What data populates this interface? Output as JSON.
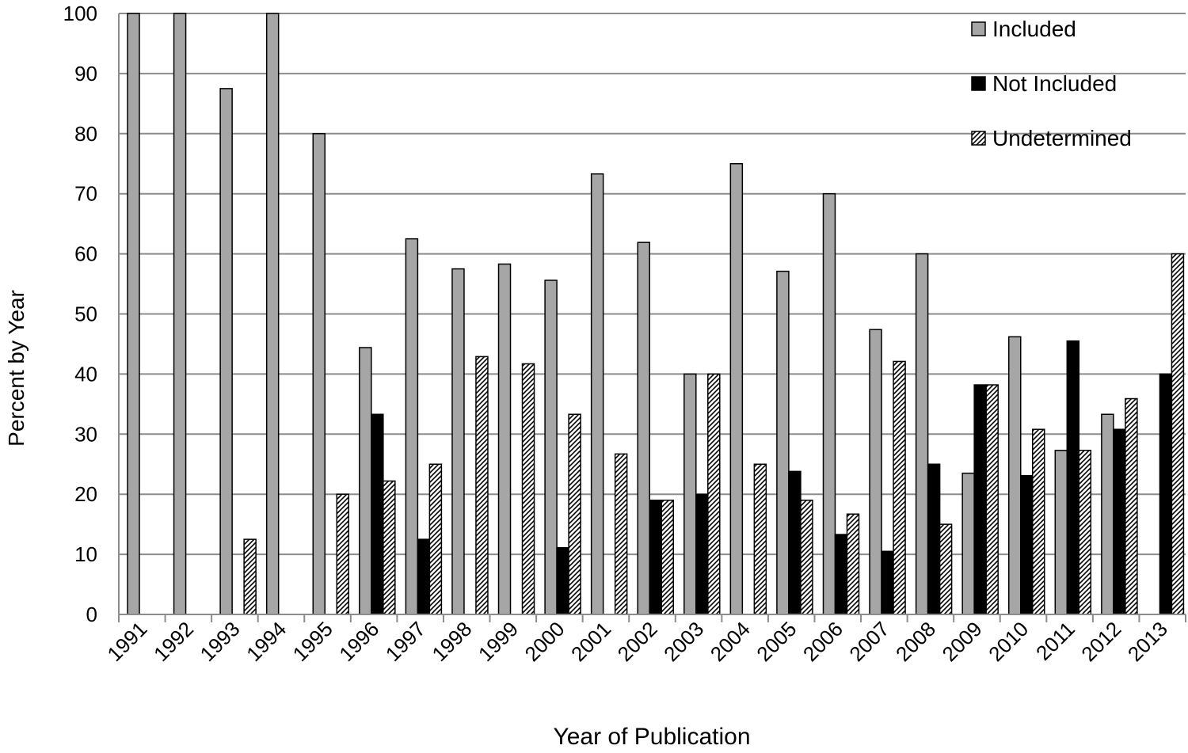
{
  "chart_data": {
    "type": "bar",
    "title": "",
    "xlabel": "Year of Publication",
    "ylabel": "Percent by Year",
    "ylim": [
      0,
      100
    ],
    "yticks": [
      "0",
      "10",
      "20",
      "30",
      "40",
      "50",
      "60",
      "70",
      "80",
      "90",
      "100"
    ],
    "grid": true,
    "legend_position": "top-right",
    "categories": [
      "1991",
      "1992",
      "1993",
      "1994",
      "1995",
      "1996",
      "1997",
      "1998",
      "1999",
      "2000",
      "2001",
      "2002",
      "2003",
      "2004",
      "2005",
      "2006",
      "2007",
      "2008",
      "2009",
      "2010",
      "2011",
      "2012",
      "2013"
    ],
    "series": [
      {
        "name": "Included",
        "color": "#a6a6a6",
        "pattern": "solid",
        "values": [
          100,
          100,
          87.5,
          100,
          80,
          44.4,
          62.5,
          57.5,
          58.3,
          55.6,
          73.3,
          61.9,
          40,
          75,
          57.1,
          70,
          47.4,
          60,
          23.5,
          46.2,
          27.3,
          33.3,
          0
        ]
      },
      {
        "name": "Not Included",
        "color": "#000000",
        "pattern": "solid",
        "values": [
          0,
          0,
          0,
          0,
          0,
          33.3,
          12.5,
          0,
          0,
          11.1,
          0,
          19,
          20,
          0,
          23.8,
          13.3,
          10.5,
          25,
          38.2,
          23.1,
          45.5,
          30.8,
          40
        ]
      },
      {
        "name": "Undetermined",
        "color": "#ffffff",
        "pattern": "hatched",
        "values": [
          0,
          0,
          12.5,
          0,
          20,
          22.2,
          25,
          42.9,
          41.7,
          33.3,
          26.7,
          19,
          40,
          25,
          19,
          16.7,
          42.1,
          15,
          38.2,
          30.8,
          27.3,
          35.9,
          60
        ]
      }
    ]
  }
}
